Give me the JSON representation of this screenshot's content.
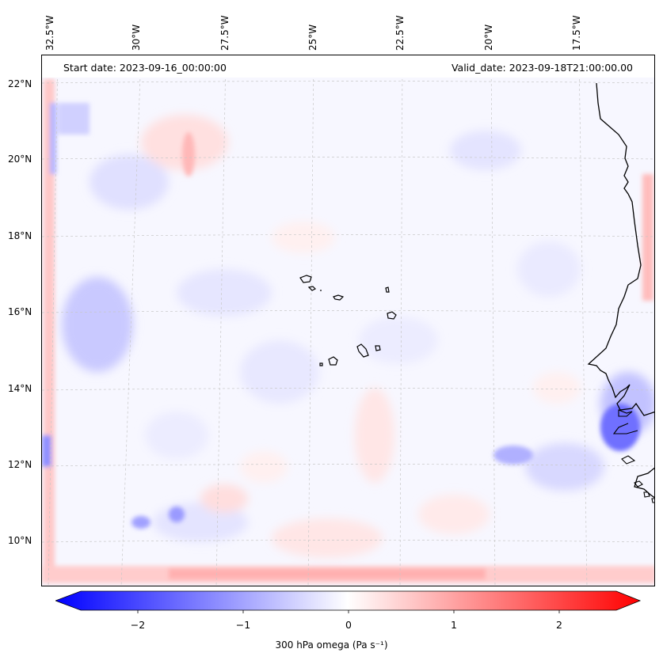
{
  "header": {
    "start_date": "Start date: 2023-09-16_00:00:00",
    "valid_date": "Valid_date: 2023-09-18T21:00:00.00"
  },
  "axes": {
    "lon_ticks": [
      "32.5°W",
      "30°W",
      "27.5°W",
      "25°W",
      "22.5°W",
      "20°W",
      "17.5°W"
    ],
    "lat_ticks": [
      "22°N",
      "20°N",
      "18°N",
      "16°N",
      "14°N",
      "12°N",
      "10°N"
    ]
  },
  "colorbar": {
    "label": "300 hPa omega (Pa s⁻¹)",
    "ticks": [
      "−2",
      "−1",
      "0",
      "1",
      "2"
    ],
    "range": [
      -2.7,
      2.7
    ],
    "colormap": "bwr",
    "color_low": "#0000ff",
    "color_mid": "#ffffff",
    "color_high": "#ff0000"
  },
  "map": {
    "variable": "omega",
    "pressure_level": "300 hPa",
    "features": [
      "coastline",
      "gridlines"
    ]
  }
}
